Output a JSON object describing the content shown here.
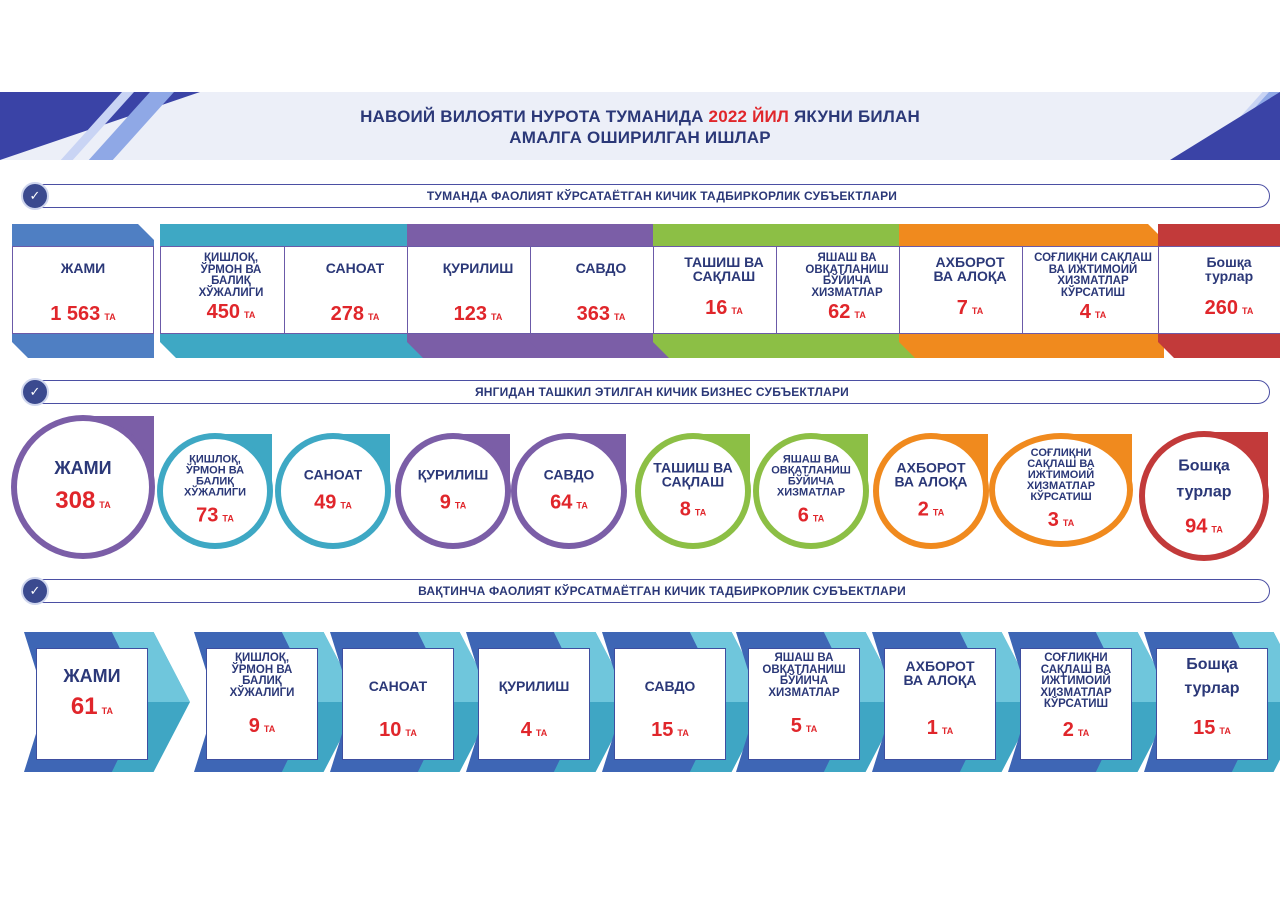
{
  "header": {
    "title_part1": "НАВОИЙ ВИЛОЯТИ НУРОТА ТУМАНИДА ",
    "title_year": "2022 ЙИЛ",
    "title_part2": " ЯКУНИ БИЛАН",
    "title_line2": "АМАЛГА ОШИРИЛГАН ИШЛАР"
  },
  "unit": "ТА",
  "section1": {
    "title": "ТУМАНДА ФАОЛИЯТ КЎРСАТАЁТГАН КИЧИК ТАДБИРКОРЛИК СУБЪЕКТЛАРИ",
    "items": [
      {
        "l1": "ЖАМИ",
        "l2": "",
        "l3": "",
        "l4": "",
        "value": "1 563",
        "color": "#4f7fc3"
      },
      {
        "l1": "ҚИШЛОҚ,",
        "l2": "ЎРМОН ВА",
        "l3": "БАЛИҚ",
        "l4": "ХЎЖАЛИГИ",
        "value": "450",
        "color": "#3ea8c4"
      },
      {
        "l1": "САНОАТ",
        "l2": "",
        "l3": "",
        "l4": "",
        "value": "278",
        "color": "#3ea8c4"
      },
      {
        "l1": "ҚУРИЛИШ",
        "l2": "",
        "l3": "",
        "l4": "",
        "value": "123",
        "color": "#7b5ea7"
      },
      {
        "l1": "САВДО",
        "l2": "",
        "l3": "",
        "l4": "",
        "value": "363",
        "color": "#7b5ea7"
      },
      {
        "l1": "ТАШИШ ВА",
        "l2": "САҚЛАШ",
        "l3": "",
        "l4": "",
        "value": "16",
        "color": "#8cbf45"
      },
      {
        "l1": "ЯШАШ ВА",
        "l2": "ОВҚАТЛАНИШ",
        "l3": "БЎЙИЧА",
        "l4": "ХИЗМАТЛАР",
        "value": "62",
        "color": "#8cbf45"
      },
      {
        "l1": "АХБОРОТ",
        "l2": "ВА АЛОҚА",
        "l3": "",
        "l4": "",
        "value": "7",
        "color": "#f08a1e"
      },
      {
        "l1": "СОҒЛИҚНИ САҚЛАШ",
        "l2": "ВА ИЖТИМОИЙ",
        "l3": "ХИЗМАТЛАР",
        "l4": "КЎРСАТИШ",
        "value": "4",
        "color": "#f08a1e"
      },
      {
        "l1": "Бошқа",
        "l2": "турлар",
        "l3": "",
        "l4": "",
        "value": "260",
        "color": "#c23a3a"
      }
    ]
  },
  "section2": {
    "title": "ЯНГИДАН ТАШКИЛ ЭТИЛГАН КИЧИК БИЗНЕС СУБЪЕКТЛАРИ",
    "items": [
      {
        "l1": "ЖАМИ",
        "l2": "",
        "l3": "",
        "l4": "",
        "value": "308",
        "color": "#7b5ea7"
      },
      {
        "l1": "ҚИШЛОҚ,",
        "l2": "ЎРМОН ВА",
        "l3": "БАЛИҚ",
        "l4": "ХЎЖАЛИГИ",
        "value": "73",
        "color": "#3ea8c4"
      },
      {
        "l1": "САНОАТ",
        "l2": "",
        "l3": "",
        "l4": "",
        "value": "49",
        "color": "#3ea8c4"
      },
      {
        "l1": "ҚУРИЛИШ",
        "l2": "",
        "l3": "",
        "l4": "",
        "value": "9",
        "color": "#7b5ea7"
      },
      {
        "l1": "САВДО",
        "l2": "",
        "l3": "",
        "l4": "",
        "value": "64",
        "color": "#7b5ea7"
      },
      {
        "l1": "ТАШИШ ВА",
        "l2": "САҚЛАШ",
        "l3": "",
        "l4": "",
        "value": "8",
        "color": "#8cbf45"
      },
      {
        "l1": "ЯШАШ ВА",
        "l2": "ОВҚАТЛАНИШ",
        "l3": "БЎЙИЧА",
        "l4": "ХИЗМАТЛАР",
        "value": "6",
        "color": "#8cbf45"
      },
      {
        "l1": "АХБОРОТ",
        "l2": "ВА АЛОҚА",
        "l3": "",
        "l4": "",
        "value": "2",
        "color": "#f08a1e"
      },
      {
        "l1": "СОҒЛИҚНИ",
        "l2": "САҚЛАШ ВА",
        "l3": "ИЖТИМОИЙ",
        "l4": "ХИЗМАТЛАР",
        "l5": "КЎРСАТИШ",
        "value": "3",
        "color": "#f08a1e"
      },
      {
        "l1": "Бошқа",
        "l2": "турлар",
        "l3": "",
        "l4": "",
        "value": "94",
        "color": "#c23a3a"
      }
    ]
  },
  "section3": {
    "title": "ВАҚТИНЧА ФАОЛИЯТ КЎРСАТМАЁТГАН КИЧИК ТАДБИРКОРЛИК СУБЪЕКТЛАРИ",
    "items": [
      {
        "l1": "ЖАМИ",
        "l2": "",
        "l3": "",
        "l4": "",
        "value": "61"
      },
      {
        "l1": "ҚИШЛОҚ,",
        "l2": "ЎРМОН ВА",
        "l3": "БАЛИҚ",
        "l4": "ХЎЖАЛИГИ",
        "value": "9"
      },
      {
        "l1": "САНОАТ",
        "l2": "",
        "l3": "",
        "l4": "",
        "value": "10"
      },
      {
        "l1": "ҚУРИЛИШ",
        "l2": "",
        "l3": "",
        "l4": "",
        "value": "4"
      },
      {
        "l1": "САВДО",
        "l2": "",
        "l3": "",
        "l4": "",
        "value": "15"
      },
      {
        "l1": "ЯШАШ ВА",
        "l2": "ОВҚАТЛАНИШ",
        "l3": "БЎЙИЧА",
        "l4": "ХИЗМАТЛАР",
        "value": "5"
      },
      {
        "l1": "АХБОРОТ",
        "l2": "ВА АЛОҚА",
        "l3": "",
        "l4": "",
        "value": "1"
      },
      {
        "l1": "СОҒЛИҚНИ",
        "l2": "САҚЛАШ ВА",
        "l3": "ИЖТИМОИЙ",
        "l4": "ХИЗМАТЛАР",
        "l5": "КЎРСАТИШ",
        "value": "2"
      },
      {
        "l1": "Бошқа",
        "l2": "турлар",
        "l3": "",
        "l4": "",
        "value": "15"
      }
    ]
  }
}
